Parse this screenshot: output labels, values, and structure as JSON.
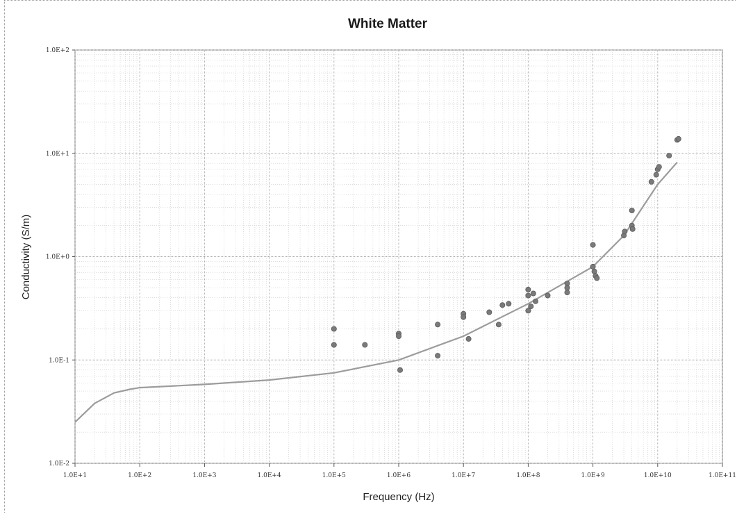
{
  "chart_data": {
    "type": "scatter",
    "title": "White Matter",
    "xlabel": "Frequency (Hz)",
    "ylabel": "Conductivity (S/m)",
    "x_scale": "log",
    "y_scale": "log",
    "xlim": [
      10,
      100000000000
    ],
    "ylim": [
      0.01,
      100
    ],
    "x_tick_labels": [
      "1.0E+1",
      "1.0E+2",
      "1.0E+3",
      "1.0E+4",
      "1.0E+5",
      "1.0E+6",
      "1.0E+7",
      "1.0E+8",
      "1.0E+9",
      "1.0E+10",
      "1.0E+11"
    ],
    "y_tick_labels": [
      "1.0E-2",
      "1.0E-1",
      "1.0E+0",
      "1.0E+1",
      "1.0E+2"
    ],
    "grid": true,
    "colors": {
      "points": "#7a7a7a",
      "fit_line": "#9c9c9c",
      "grid": "#c8c8c8"
    },
    "series": [
      {
        "type": "scatter",
        "points": [
          [
            100000,
            0.2
          ],
          [
            100000,
            0.14
          ],
          [
            300000,
            0.14
          ],
          [
            1000000,
            0.18
          ],
          [
            1000000,
            0.17
          ],
          [
            1050000,
            0.08
          ],
          [
            4000000,
            0.22
          ],
          [
            4000000,
            0.11
          ],
          [
            10000000,
            0.28
          ],
          [
            10000000,
            0.26
          ],
          [
            12000000,
            0.16
          ],
          [
            25000000,
            0.29
          ],
          [
            35000000,
            0.22
          ],
          [
            40000000,
            0.34
          ],
          [
            50000000,
            0.35
          ],
          [
            100000000,
            0.48
          ],
          [
            100000000,
            0.42
          ],
          [
            100000000,
            0.3
          ],
          [
            110000000,
            0.33
          ],
          [
            120000000,
            0.44
          ],
          [
            130000000,
            0.37
          ],
          [
            200000000,
            0.42
          ],
          [
            400000000,
            0.55
          ],
          [
            400000000,
            0.5
          ],
          [
            400000000,
            0.45
          ],
          [
            1000000000,
            1.3
          ],
          [
            1000000000,
            0.8
          ],
          [
            1050000000,
            0.72
          ],
          [
            1100000000,
            0.65
          ],
          [
            1150000000,
            0.62
          ],
          [
            3000000000,
            1.6
          ],
          [
            3100000000,
            1.75
          ],
          [
            4000000000,
            2.8
          ],
          [
            4000000000,
            2.0
          ],
          [
            4100000000,
            1.85
          ],
          [
            8000000000,
            5.3
          ],
          [
            9500000000,
            6.2
          ],
          [
            10000000000,
            7.0
          ],
          [
            10500000000,
            7.4
          ],
          [
            15000000000,
            9.5
          ],
          [
            20000000000,
            13.5
          ],
          [
            21000000000,
            13.8
          ]
        ]
      },
      {
        "type": "line",
        "points": [
          [
            10,
            0.025
          ],
          [
            20,
            0.038
          ],
          [
            40,
            0.048
          ],
          [
            70,
            0.052
          ],
          [
            100,
            0.054
          ],
          [
            1000,
            0.058
          ],
          [
            10000,
            0.064
          ],
          [
            100000,
            0.075
          ],
          [
            1000000,
            0.1
          ],
          [
            10000000,
            0.17
          ],
          [
            100000000,
            0.35
          ],
          [
            1000000000,
            0.8
          ],
          [
            3000000000,
            1.6
          ],
          [
            10000000000,
            5.0
          ],
          [
            20000000000,
            8.2
          ]
        ]
      }
    ]
  }
}
